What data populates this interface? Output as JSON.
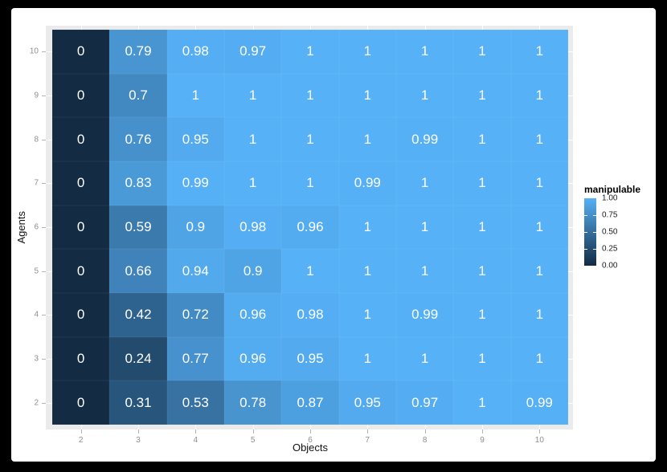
{
  "chart_data": {
    "type": "heatmap",
    "title": "",
    "xlabel": "Objects",
    "ylabel": "Agents",
    "x_ticks": [
      "2",
      "3",
      "4",
      "5",
      "6",
      "7",
      "8",
      "9",
      "10"
    ],
    "y_ticks": [
      "10",
      "9",
      "8",
      "7",
      "6",
      "5",
      "4",
      "3",
      "2"
    ],
    "value_range": [
      0,
      1
    ],
    "matrix_rows_top_to_bottom": [
      [
        "0",
        "0.79",
        "0.98",
        "0.97",
        "1",
        "1",
        "1",
        "1",
        "1"
      ],
      [
        "0",
        "0.7",
        "1",
        "1",
        "1",
        "1",
        "1",
        "1",
        "1"
      ],
      [
        "0",
        "0.76",
        "0.95",
        "1",
        "1",
        "1",
        "0.99",
        "1",
        "1"
      ],
      [
        "0",
        "0.83",
        "0.99",
        "1",
        "1",
        "0.99",
        "1",
        "1",
        "1"
      ],
      [
        "0",
        "0.59",
        "0.9",
        "0.98",
        "0.96",
        "1",
        "1",
        "1",
        "1"
      ],
      [
        "0",
        "0.66",
        "0.94",
        "0.9",
        "1",
        "1",
        "1",
        "1",
        "1"
      ],
      [
        "0",
        "0.42",
        "0.72",
        "0.96",
        "0.98",
        "1",
        "0.99",
        "1",
        "1"
      ],
      [
        "0",
        "0.24",
        "0.77",
        "0.96",
        "0.95",
        "1",
        "1",
        "1",
        "1"
      ],
      [
        "0",
        "0.31",
        "0.53",
        "0.78",
        "0.87",
        "0.95",
        "0.97",
        "1",
        "0.99"
      ]
    ],
    "legend": {
      "title": "manipulable",
      "position": "right",
      "tick_labels": [
        "1.00",
        "0.75",
        "0.50",
        "0.25",
        "0.00"
      ],
      "tick_values": [
        1.0,
        0.75,
        0.5,
        0.25,
        0.0
      ]
    },
    "layout_hints": {
      "panel_grid": "white major gridlines at every tick, visible in panel margins",
      "grid_on": true
    },
    "colors": {
      "frame_bg": "#000000",
      "canvas_bg": "#FFFFFF",
      "panel_bg": "#EBEBEB",
      "gridline": "#FFFFFF",
      "low": "#132B43",
      "high": "#56B1F7",
      "cell_text": "#FFFFFF",
      "tick_label": "#8E8E8E",
      "tick_mark": "#B3B3B3",
      "axis_title": "#111111",
      "legend_title": "#000000",
      "legend_label": "#1A1A1A",
      "legend_tick": "#FFFFFF"
    }
  }
}
